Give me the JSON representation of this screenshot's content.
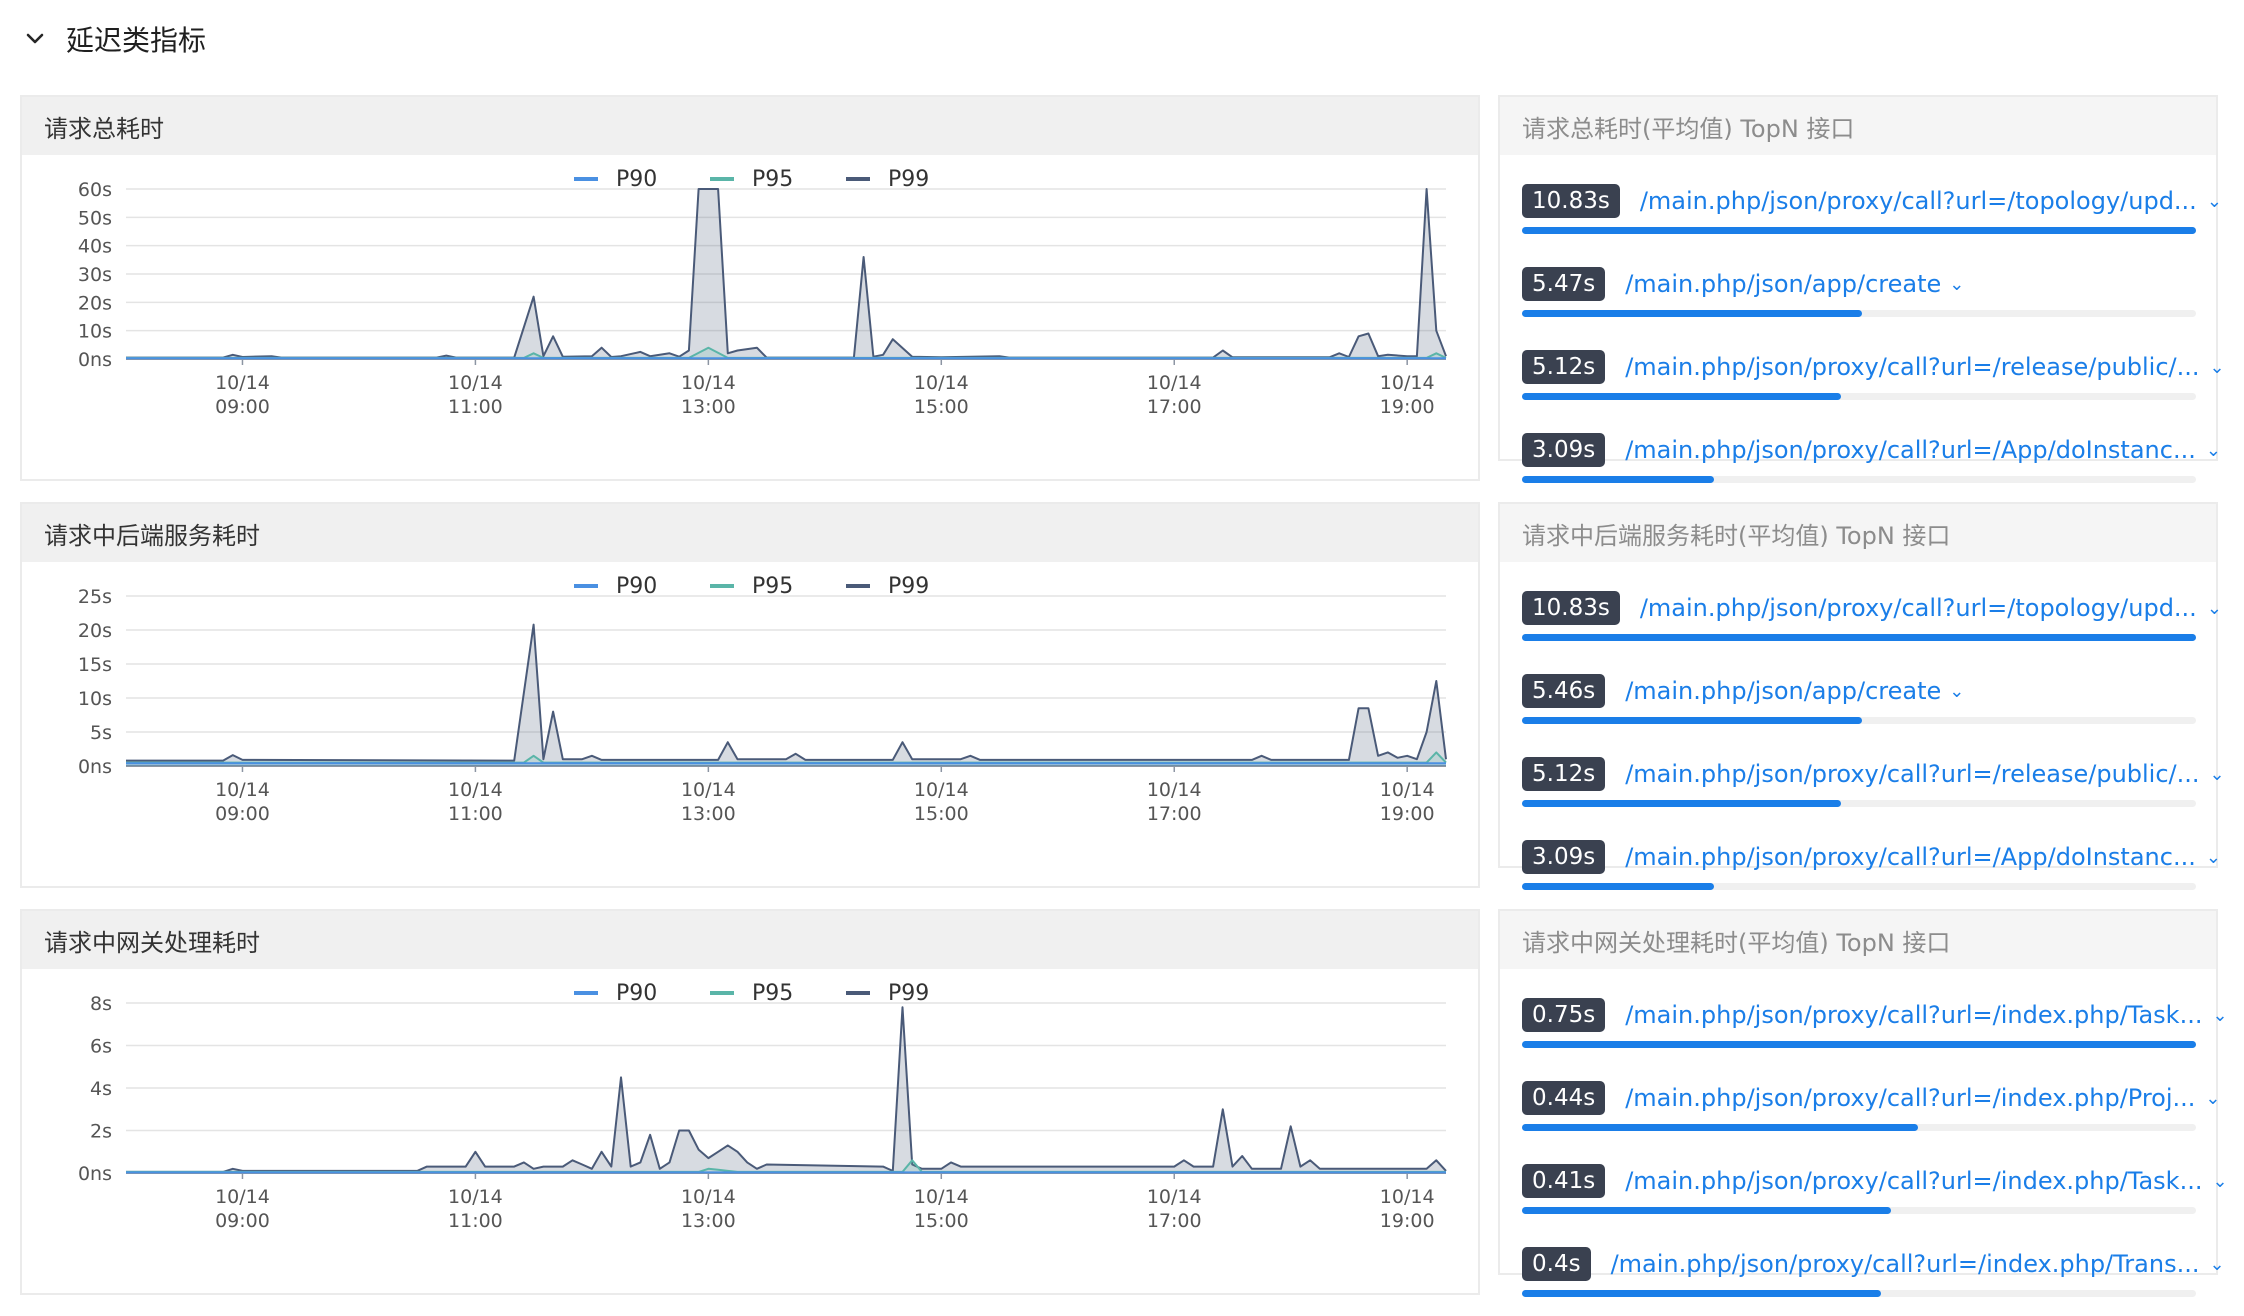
{
  "section": {
    "title": "延迟类指标"
  },
  "legend": [
    {
      "name": "P90",
      "color": "#4a90e2"
    },
    {
      "name": "P95",
      "color": "#5ab5a8"
    },
    {
      "name": "P99",
      "color": "#4a5a78"
    }
  ],
  "x_ticks": [
    {
      "date": "10/14",
      "time": "09:00"
    },
    {
      "date": "10/14",
      "time": "11:00"
    },
    {
      "date": "10/14",
      "time": "13:00"
    },
    {
      "date": "10/14",
      "time": "15:00"
    },
    {
      "date": "10/14",
      "time": "17:00"
    },
    {
      "date": "10/14",
      "time": "19:00"
    }
  ],
  "panels": [
    {
      "title": "请求总耗时",
      "top_title": "请求总耗时(平均值) TopN 接口",
      "top_items": [
        {
          "value": "10.83s",
          "path": "/main.php/json/proxy/call?url=/topology/upd...",
          "ratio": 1.0
        },
        {
          "value": "5.47s",
          "path": "/main.php/json/app/create",
          "ratio": 0.505
        },
        {
          "value": "5.12s",
          "path": "/main.php/json/proxy/call?url=/release/public/...",
          "ratio": 0.473
        },
        {
          "value": "3.09s",
          "path": "/main.php/json/proxy/call?url=/App/doInstanc...",
          "ratio": 0.285
        }
      ]
    },
    {
      "title": "请求中后端服务耗时",
      "top_title": "请求中后端服务耗时(平均值) TopN 接口",
      "top_items": [
        {
          "value": "10.83s",
          "path": "/main.php/json/proxy/call?url=/topology/upd...",
          "ratio": 1.0
        },
        {
          "value": "5.46s",
          "path": "/main.php/json/app/create",
          "ratio": 0.504
        },
        {
          "value": "5.12s",
          "path": "/main.php/json/proxy/call?url=/release/public/...",
          "ratio": 0.473
        },
        {
          "value": "3.09s",
          "path": "/main.php/json/proxy/call?url=/App/doInstanc...",
          "ratio": 0.285
        }
      ]
    },
    {
      "title": "请求中网关处理耗时",
      "top_title": "请求中网关处理耗时(平均值) TopN 接口",
      "top_items": [
        {
          "value": "0.75s",
          "path": "/main.php/json/proxy/call?url=/index.php/Task...",
          "ratio": 1.0
        },
        {
          "value": "0.44s",
          "path": "/main.php/json/proxy/call?url=/index.php/Proj...",
          "ratio": 0.587
        },
        {
          "value": "0.41s",
          "path": "/main.php/json/proxy/call?url=/index.php/Task...",
          "ratio": 0.547
        },
        {
          "value": "0.4s",
          "path": "/main.php/json/proxy/call?url=/index.php/Trans...",
          "ratio": 0.533
        }
      ]
    }
  ],
  "chart_data": [
    {
      "type": "area",
      "title": "请求总耗时",
      "y_ticks": [
        "0ns",
        "10s",
        "20s",
        "30s",
        "40s",
        "50s",
        "60s"
      ],
      "ylim": [
        0,
        60
      ],
      "x_range": [
        "08:00",
        "19:20"
      ],
      "grid": true,
      "legend_position": "top-center",
      "series": [
        {
          "name": "P90",
          "points": [
            [
              "08:00",
              0.3
            ],
            [
              "19:20",
              0.3
            ]
          ]
        },
        {
          "name": "P95",
          "points": [
            [
              "08:00",
              0.4
            ],
            [
              "11:25",
              0.4
            ],
            [
              "11:30",
              2
            ],
            [
              "11:35",
              0.4
            ],
            [
              "12:50",
              0.4
            ],
            [
              "13:00",
              4
            ],
            [
              "13:10",
              0.4
            ],
            [
              "19:10",
              0.4
            ],
            [
              "19:15",
              2
            ],
            [
              "19:20",
              0.4
            ]
          ]
        },
        {
          "name": "P99",
          "points": [
            [
              "08:00",
              0.5
            ],
            [
              "08:50",
              0.5
            ],
            [
              "08:55",
              1.5
            ],
            [
              "09:00",
              0.7
            ],
            [
              "09:15",
              1
            ],
            [
              "09:20",
              0.5
            ],
            [
              "10:40",
              0.5
            ],
            [
              "10:45",
              1.2
            ],
            [
              "10:50",
              0.5
            ],
            [
              "11:20",
              0.5
            ],
            [
              "11:30",
              22
            ],
            [
              "11:35",
              1
            ],
            [
              "11:40",
              8
            ],
            [
              "11:45",
              0.8
            ],
            [
              "12:00",
              1
            ],
            [
              "12:05",
              4
            ],
            [
              "12:10",
              0.7
            ],
            [
              "12:15",
              1
            ],
            [
              "12:25",
              2.5
            ],
            [
              "12:30",
              1
            ],
            [
              "12:40",
              2
            ],
            [
              "12:45",
              0.8
            ],
            [
              "12:50",
              3
            ],
            [
              "12:55",
              60
            ],
            [
              "13:05",
              60
            ],
            [
              "13:10",
              2
            ],
            [
              "13:15",
              3
            ],
            [
              "13:25",
              4
            ],
            [
              "13:30",
              0.5
            ],
            [
              "14:15",
              0.5
            ],
            [
              "14:20",
              36
            ],
            [
              "14:25",
              0.8
            ],
            [
              "14:30",
              1.5
            ],
            [
              "14:35",
              7
            ],
            [
              "14:45",
              0.8
            ],
            [
              "15:00",
              0.6
            ],
            [
              "15:30",
              1
            ],
            [
              "15:35",
              0.5
            ],
            [
              "17:20",
              0.5
            ],
            [
              "17:25",
              3
            ],
            [
              "17:30",
              0.6
            ],
            [
              "18:20",
              0.6
            ],
            [
              "18:25",
              2
            ],
            [
              "18:30",
              0.7
            ],
            [
              "18:35",
              8
            ],
            [
              "18:40",
              9
            ],
            [
              "18:45",
              1
            ],
            [
              "18:50",
              1.5
            ],
            [
              "19:00",
              1
            ],
            [
              "19:05",
              1
            ],
            [
              "19:10",
              60
            ],
            [
              "19:15",
              10
            ],
            [
              "19:20",
              1
            ]
          ]
        }
      ]
    },
    {
      "type": "area",
      "title": "请求中后端服务耗时",
      "y_ticks": [
        "0ns",
        "5s",
        "10s",
        "15s",
        "20s",
        "25s"
      ],
      "ylim": [
        0,
        25
      ],
      "x_range": [
        "08:00",
        "19:20"
      ],
      "grid": true,
      "legend_position": "top-center",
      "series": [
        {
          "name": "P90",
          "points": [
            [
              "08:00",
              0.4
            ],
            [
              "19:20",
              0.4
            ]
          ]
        },
        {
          "name": "P95",
          "points": [
            [
              "08:00",
              0.5
            ],
            [
              "11:25",
              0.5
            ],
            [
              "11:30",
              1.5
            ],
            [
              "11:35",
              0.5
            ],
            [
              "19:10",
              0.5
            ],
            [
              "19:15",
              2
            ],
            [
              "19:20",
              0.5
            ]
          ]
        },
        {
          "name": "P99",
          "points": [
            [
              "08:00",
              0.8
            ],
            [
              "08:50",
              0.8
            ],
            [
              "08:55",
              1.6
            ],
            [
              "09:00",
              0.9
            ],
            [
              "11:20",
              0.8
            ],
            [
              "11:30",
              20.8
            ],
            [
              "11:35",
              1
            ],
            [
              "11:40",
              8
            ],
            [
              "11:45",
              1
            ],
            [
              "11:55",
              1
            ],
            [
              "12:00",
              1.5
            ],
            [
              "12:05",
              0.9
            ],
            [
              "13:05",
              0.9
            ],
            [
              "13:10",
              3.5
            ],
            [
              "13:15",
              1
            ],
            [
              "13:40",
              1
            ],
            [
              "13:45",
              1.8
            ],
            [
              "13:50",
              0.9
            ],
            [
              "14:35",
              0.9
            ],
            [
              "14:40",
              3.5
            ],
            [
              "14:45",
              1
            ],
            [
              "15:10",
              1
            ],
            [
              "15:15",
              1.5
            ],
            [
              "15:20",
              0.9
            ],
            [
              "17:40",
              0.9
            ],
            [
              "17:45",
              1.5
            ],
            [
              "17:50",
              0.9
            ],
            [
              "18:30",
              0.9
            ],
            [
              "18:35",
              8.5
            ],
            [
              "18:40",
              8.5
            ],
            [
              "18:45",
              1.5
            ],
            [
              "18:50",
              2
            ],
            [
              "18:55",
              1.2
            ],
            [
              "19:00",
              1.5
            ],
            [
              "19:05",
              1
            ],
            [
              "19:10",
              5
            ],
            [
              "19:15",
              12.5
            ],
            [
              "19:20",
              1
            ]
          ]
        }
      ]
    },
    {
      "type": "area",
      "title": "请求中网关处理耗时",
      "y_ticks": [
        "0ns",
        "2s",
        "4s",
        "6s",
        "8s"
      ],
      "ylim": [
        0,
        8
      ],
      "x_range": [
        "08:00",
        "19:20"
      ],
      "grid": true,
      "legend_position": "top-center",
      "series": [
        {
          "name": "P90",
          "points": [
            [
              "08:00",
              0.03
            ],
            [
              "19:20",
              0.03
            ]
          ]
        },
        {
          "name": "P95",
          "points": [
            [
              "08:00",
              0.05
            ],
            [
              "12:55",
              0.05
            ],
            [
              "13:00",
              0.2
            ],
            [
              "13:05",
              0.15
            ],
            [
              "13:10",
              0.1
            ],
            [
              "13:15",
              0.05
            ],
            [
              "14:40",
              0.05
            ],
            [
              "14:45",
              0.6
            ],
            [
              "14:50",
              0.05
            ],
            [
              "19:20",
              0.05
            ]
          ]
        },
        {
          "name": "P99",
          "points": [
            [
              "08:00",
              0.05
            ],
            [
              "08:50",
              0.05
            ],
            [
              "08:55",
              0.2
            ],
            [
              "09:00",
              0.1
            ],
            [
              "10:30",
              0.1
            ],
            [
              "10:35",
              0.3
            ],
            [
              "10:45",
              0.3
            ],
            [
              "10:55",
              0.3
            ],
            [
              "11:00",
              1
            ],
            [
              "11:05",
              0.3
            ],
            [
              "11:20",
              0.3
            ],
            [
              "11:25",
              0.5
            ],
            [
              "11:30",
              0.2
            ],
            [
              "11:35",
              0.3
            ],
            [
              "11:45",
              0.3
            ],
            [
              "11:50",
              0.6
            ],
            [
              "11:55",
              0.4
            ],
            [
              "12:00",
              0.2
            ],
            [
              "12:05",
              1
            ],
            [
              "12:10",
              0.3
            ],
            [
              "12:15",
              4.5
            ],
            [
              "12:20",
              0.3
            ],
            [
              "12:25",
              0.5
            ],
            [
              "12:30",
              1.8
            ],
            [
              "12:35",
              0.2
            ],
            [
              "12:40",
              0.5
            ],
            [
              "12:45",
              2
            ],
            [
              "12:50",
              2
            ],
            [
              "12:55",
              1.1
            ],
            [
              "13:00",
              0.7
            ],
            [
              "13:05",
              1
            ],
            [
              "13:10",
              1.3
            ],
            [
              "13:15",
              1
            ],
            [
              "13:20",
              0.5
            ],
            [
              "13:25",
              0.2
            ],
            [
              "13:30",
              0.4
            ],
            [
              "14:30",
              0.3
            ],
            [
              "14:35",
              0.1
            ],
            [
              "14:40",
              7.8
            ],
            [
              "14:45",
              0.4
            ],
            [
              "14:50",
              0.2
            ],
            [
              "15:00",
              0.2
            ],
            [
              "15:05",
              0.5
            ],
            [
              "15:10",
              0.3
            ],
            [
              "17:00",
              0.3
            ],
            [
              "17:05",
              0.6
            ],
            [
              "17:10",
              0.3
            ],
            [
              "17:20",
              0.3
            ],
            [
              "17:25",
              3
            ],
            [
              "17:30",
              0.3
            ],
            [
              "17:35",
              0.8
            ],
            [
              "17:40",
              0.2
            ],
            [
              "17:55",
              0.2
            ],
            [
              "18:00",
              2.2
            ],
            [
              "18:05",
              0.3
            ],
            [
              "18:10",
              0.6
            ],
            [
              "18:15",
              0.2
            ],
            [
              "19:10",
              0.2
            ],
            [
              "19:15",
              0.6
            ],
            [
              "19:20",
              0.1
            ]
          ]
        }
      ]
    }
  ]
}
